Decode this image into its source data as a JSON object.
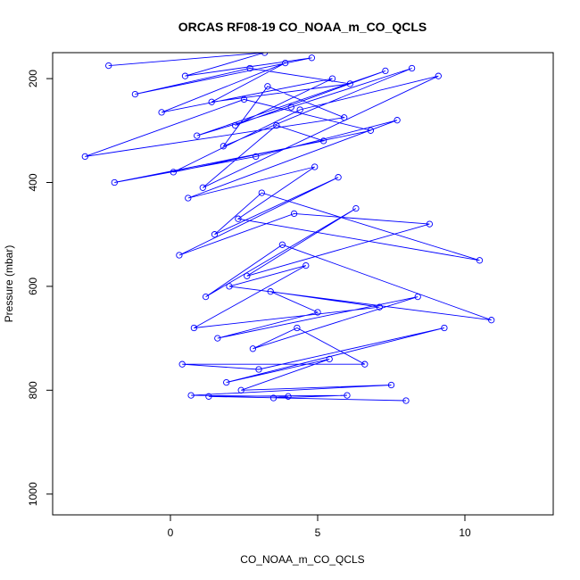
{
  "chart_data": {
    "type": "line",
    "title": "ORCAS RF08-19 CO_NOAA_m_CO_QCLS",
    "xlabel": "CO_NOAA_m_CO_QCLS",
    "ylabel": "Pressure (mbar)",
    "xlim": [
      -4,
      13
    ],
    "ylim": [
      1040,
      150
    ],
    "y_reversed": true,
    "x_ticks": [
      0,
      5,
      10
    ],
    "y_ticks": [
      200,
      400,
      600,
      800,
      1000
    ],
    "grid": false,
    "legend": "none",
    "line_color": "#0000ff",
    "marker": "open-circle",
    "series": [
      {
        "x": [
          -2.1,
          3.2,
          0.5,
          4.8,
          -1.2,
          2.7,
          6.1,
          1.4,
          3.9,
          -0.3,
          5.5,
          2.2,
          7.3,
          0.9,
          4.1,
          8.2,
          1.8,
          3.3,
          5.9,
          -2.9,
          2.5,
          6.8,
          0.1,
          4.4,
          9.1,
          1.1,
          3.6,
          5.2,
          -1.9,
          2.9,
          7.7,
          0.6,
          4.9,
          2.3,
          10.5,
          3.1,
          1.5,
          5.7,
          0.3,
          4.2,
          8.8,
          2.6,
          6.3,
          1.2,
          3.8,
          10.9,
          2.0,
          4.6,
          0.8,
          7.1,
          3.4,
          5.0,
          1.6,
          8.4,
          2.8,
          4.3,
          6.6,
          0.4,
          3.0,
          9.3,
          1.9,
          5.4,
          2.4,
          7.5,
          0.7,
          4.0,
          3.5,
          6.0,
          1.3,
          8.0
        ],
        "y": [
          175,
          150,
          195,
          160,
          230,
          180,
          210,
          245,
          170,
          265,
          200,
          290,
          185,
          310,
          255,
          180,
          330,
          215,
          275,
          350,
          240,
          300,
          380,
          260,
          195,
          410,
          290,
          320,
          400,
          350,
          280,
          430,
          370,
          470,
          550,
          420,
          500,
          390,
          540,
          460,
          480,
          580,
          450,
          620,
          520,
          665,
          600,
          560,
          680,
          640,
          610,
          650,
          700,
          620,
          720,
          680,
          750,
          750,
          760,
          680,
          785,
          740,
          800,
          790,
          810,
          812,
          815,
          810,
          812,
          820
        ]
      }
    ]
  }
}
